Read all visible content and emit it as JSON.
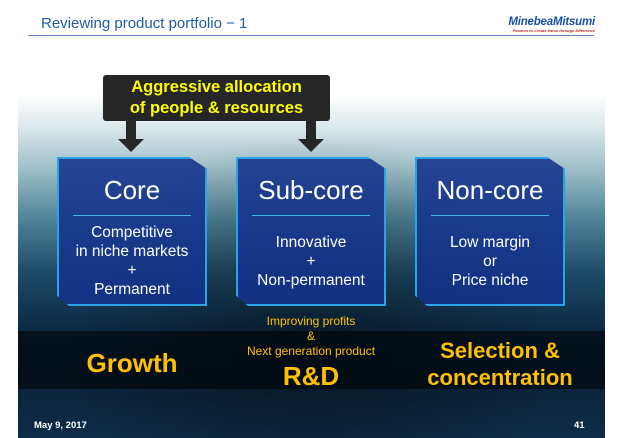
{
  "header": {
    "title": "Reviewing product portfolio − 1",
    "logo_name": "MinebeaMitsumi",
    "logo_tagline": "Passion to Create Value through Difference"
  },
  "callout": {
    "line1": "Aggressive allocation",
    "line2": "of people & resources"
  },
  "boxes": [
    {
      "title": "Core",
      "lines": [
        "Competitive",
        "in niche markets",
        "+",
        "Permanent"
      ]
    },
    {
      "title": "Sub-core",
      "lines": [
        "Innovative",
        "+",
        "Non-permanent"
      ]
    },
    {
      "title": "Non-core",
      "lines": [
        "Low margin",
        "or",
        "Price niche"
      ]
    }
  ],
  "outcomes": {
    "growth": "Growth",
    "rd_sub1": "Improving profits",
    "rd_sub2": "&",
    "rd_sub3": "Next generation product",
    "rd": "R&D",
    "selection1": "Selection &",
    "selection2": "concentration"
  },
  "footer": {
    "date": "May 9, 2017",
    "page": "41"
  },
  "colors": {
    "title": "#1f5ca8",
    "box": "#14328c",
    "accent_yellow": "#ffff00",
    "outcome": "#ffc000"
  }
}
